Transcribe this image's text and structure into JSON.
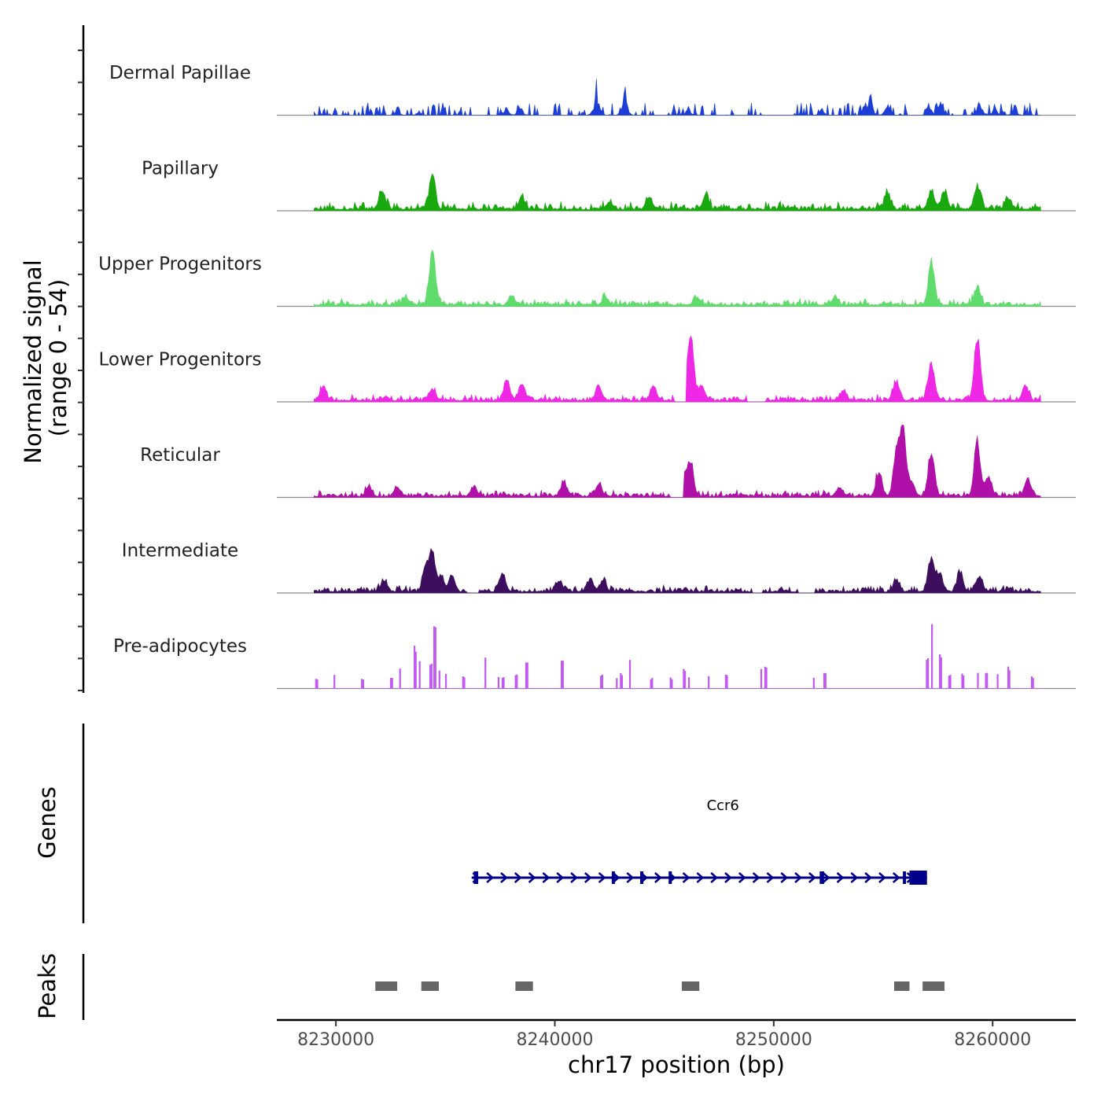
{
  "chart_data": {
    "type": "area",
    "title": "",
    "xlabel": "chr17 position (bp)",
    "ylabel_lines": [
      "Normalized signal",
      "(range 0 - 54)"
    ],
    "genes_label": "Genes",
    "peaks_label": "Peaks",
    "x_range": [
      8227300,
      8263800
    ],
    "signal_range": [
      0,
      54
    ],
    "data_extent": [
      8229000,
      8262200
    ],
    "x_ticks": [
      8230000,
      8240000,
      8250000,
      8260000
    ],
    "x_tick_labels": [
      "8230000",
      "8240000",
      "8250000",
      "8260000"
    ],
    "tracks": [
      {
        "name": "Dermal Papillae",
        "color": "#1c3ed6",
        "style": "spiky",
        "base": 5,
        "seed": 11,
        "gaps": [
          [
            8236200,
            8236800
          ],
          [
            8239300,
            8239800
          ],
          [
            8244500,
            8245100
          ],
          [
            8248200,
            8248800
          ],
          [
            8249500,
            8250700
          ],
          [
            8256200,
            8256800
          ]
        ],
        "peaks": [
          [
            8232800,
            5
          ],
          [
            8233800,
            4
          ],
          [
            8237800,
            8
          ],
          [
            8238400,
            10
          ],
          [
            8241900,
            28
          ],
          [
            8243200,
            25
          ],
          [
            8246100,
            8
          ],
          [
            8252200,
            6
          ],
          [
            8254400,
            24
          ],
          [
            8255200,
            13
          ],
          [
            8257100,
            12
          ],
          [
            8257600,
            16
          ],
          [
            8259400,
            17
          ],
          [
            8260100,
            9
          ],
          [
            8261000,
            7
          ]
        ]
      },
      {
        "name": "Papillary",
        "color": "#1aa80f",
        "style": "smooth",
        "base": 3,
        "seed": 23,
        "gaps": [],
        "peaks": [
          [
            8232100,
            12
          ],
          [
            8234400,
            22
          ],
          [
            8238500,
            8
          ],
          [
            8242500,
            5
          ],
          [
            8244300,
            8
          ],
          [
            8246900,
            9
          ],
          [
            8255200,
            11
          ],
          [
            8257200,
            13
          ],
          [
            8257800,
            12
          ],
          [
            8259300,
            16
          ],
          [
            8260700,
            7
          ]
        ]
      },
      {
        "name": "Upper Progenitors",
        "color": "#5fdc6b",
        "style": "smooth",
        "base": 2.5,
        "seed": 37,
        "gaps": [],
        "peaks": [
          [
            8233200,
            5
          ],
          [
            8234400,
            36
          ],
          [
            8238000,
            5
          ],
          [
            8242300,
            5
          ],
          [
            8246500,
            5
          ],
          [
            8252800,
            6
          ],
          [
            8257200,
            30
          ],
          [
            8259300,
            12
          ]
        ]
      },
      {
        "name": "Lower Progenitors",
        "color": "#ef28e5",
        "style": "smooth",
        "base": 2.5,
        "seed": 51,
        "gaps": [
          [
            8245500,
            8246000
          ],
          [
            8248800,
            8249600
          ]
        ],
        "peaks": [
          [
            8229400,
            9
          ],
          [
            8234400,
            8
          ],
          [
            8237800,
            13
          ],
          [
            8238500,
            12
          ],
          [
            8242000,
            10
          ],
          [
            8244500,
            10
          ],
          [
            8246200,
            48
          ],
          [
            8246700,
            10
          ],
          [
            8253200,
            7
          ],
          [
            8255600,
            12
          ],
          [
            8257200,
            25
          ],
          [
            8259300,
            42
          ],
          [
            8261500,
            10
          ]
        ]
      },
      {
        "name": "Reticular",
        "color": "#b010a8",
        "style": "smooth",
        "base": 2.5,
        "seed": 67,
        "gaps": [
          [
            8245300,
            8245900
          ]
        ],
        "peaks": [
          [
            8231500,
            6
          ],
          [
            8232800,
            6
          ],
          [
            8236300,
            5
          ],
          [
            8240400,
            9
          ],
          [
            8242000,
            8
          ],
          [
            8245900,
            12
          ],
          [
            8246200,
            22
          ],
          [
            8253000,
            6
          ],
          [
            8254800,
            16
          ],
          [
            8255600,
            28
          ],
          [
            8255900,
            45
          ],
          [
            8256300,
            10
          ],
          [
            8257200,
            30
          ],
          [
            8259300,
            37
          ],
          [
            8259800,
            13
          ],
          [
            8261600,
            13
          ]
        ]
      },
      {
        "name": "Intermediate",
        "color": "#3e0e5e",
        "style": "smooth",
        "base": 2.5,
        "seed": 83,
        "gaps": [
          [
            8236000,
            8236500
          ],
          [
            8249000,
            8249500
          ],
          [
            8251100,
            8251900
          ]
        ],
        "peaks": [
          [
            8232200,
            8
          ],
          [
            8234100,
            16
          ],
          [
            8234400,
            27
          ],
          [
            8234800,
            10
          ],
          [
            8235300,
            10
          ],
          [
            8237600,
            13
          ],
          [
            8240200,
            7
          ],
          [
            8241600,
            8
          ],
          [
            8242200,
            8
          ],
          [
            8255600,
            8
          ],
          [
            8257200,
            23
          ],
          [
            8257600,
            12
          ],
          [
            8258500,
            13
          ],
          [
            8259400,
            10
          ]
        ]
      },
      {
        "name": "Pre-adipocytes",
        "color": "#c259f2",
        "style": "sparse",
        "base": 0,
        "seed": 97,
        "gaps": [],
        "peaks": [
          [
            8229100,
            7
          ],
          [
            8229900,
            10
          ],
          [
            8231200,
            7
          ],
          [
            8232500,
            8
          ],
          [
            8232900,
            14
          ],
          [
            8233600,
            28
          ],
          [
            8233800,
            18
          ],
          [
            8234300,
            18
          ],
          [
            8234500,
            47
          ],
          [
            8234700,
            12
          ],
          [
            8235000,
            10
          ],
          [
            8235800,
            8
          ],
          [
            8236800,
            21
          ],
          [
            8237400,
            8
          ],
          [
            8237600,
            8
          ],
          [
            8238200,
            10
          ],
          [
            8238700,
            20
          ],
          [
            8240300,
            22
          ],
          [
            8242100,
            10
          ],
          [
            8242800,
            8
          ],
          [
            8243000,
            10
          ],
          [
            8243400,
            20
          ],
          [
            8244400,
            7
          ],
          [
            8245300,
            7
          ],
          [
            8245900,
            13
          ],
          [
            8246100,
            8
          ],
          [
            8247000,
            8
          ],
          [
            8247800,
            9
          ],
          [
            8249400,
            15
          ],
          [
            8249600,
            15
          ],
          [
            8251800,
            8
          ],
          [
            8252300,
            10
          ],
          [
            8257000,
            20
          ],
          [
            8257200,
            48
          ],
          [
            8257600,
            22
          ],
          [
            8258000,
            10
          ],
          [
            8258600,
            10
          ],
          [
            8259300,
            10
          ],
          [
            8259700,
            12
          ],
          [
            8260200,
            10
          ],
          [
            8260700,
            14
          ],
          [
            8261800,
            8
          ]
        ]
      }
    ],
    "gene": {
      "name": "Ccr6",
      "strand": "+",
      "start": 8236200,
      "end": 8257000,
      "color": "#00008b",
      "exons": [
        [
          8236300,
          8236500
        ],
        [
          8242600,
          8242700
        ],
        [
          8243900,
          8244000
        ],
        [
          8245200,
          8245300
        ],
        [
          8252100,
          8252300
        ],
        [
          8255900,
          8256000
        ],
        [
          8256200,
          8257000
        ]
      ]
    },
    "peaks": [
      [
        8231800,
        8232800
      ],
      [
        8233900,
        8234700
      ],
      [
        8238200,
        8239000
      ],
      [
        8245800,
        8246600
      ],
      [
        8255500,
        8256200
      ],
      [
        8256800,
        8257800
      ]
    ],
    "peaks_color": "#666666"
  }
}
